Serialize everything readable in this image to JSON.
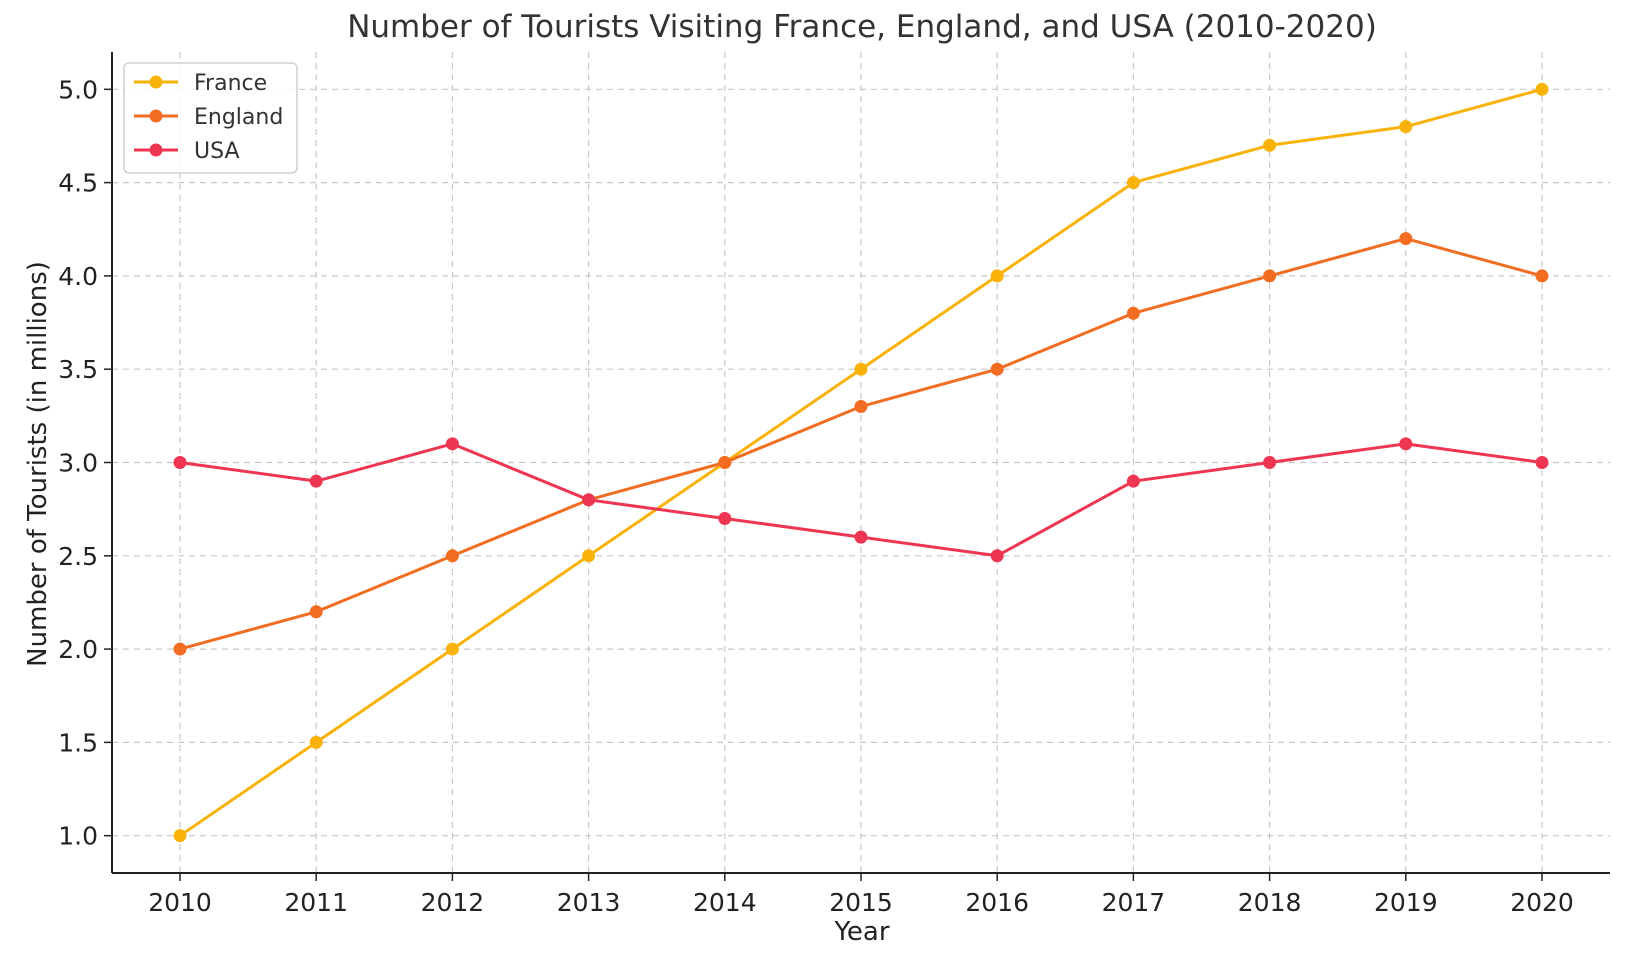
{
  "chart_data": {
    "type": "line",
    "title": "Number of Tourists Visiting France, England, and USA (2010-2020)",
    "xlabel": "Year",
    "ylabel": "Number of Tourists (in millions)",
    "categories": [
      "2010",
      "2011",
      "2012",
      "2013",
      "2014",
      "2015",
      "2016",
      "2017",
      "2018",
      "2019",
      "2020"
    ],
    "ylim": [
      0.8,
      5.2
    ],
    "yticks": [
      "1.0",
      "1.5",
      "2.0",
      "2.5",
      "3.0",
      "3.5",
      "4.0",
      "4.5",
      "5.0"
    ],
    "grid": true,
    "legend_position": "top-left",
    "markers": "circle",
    "series": [
      {
        "name": "France",
        "color": "#F9B208",
        "values": [
          1.0,
          1.5,
          2.0,
          2.5,
          3.0,
          3.5,
          4.0,
          4.5,
          4.7,
          4.8,
          5.0
        ]
      },
      {
        "name": "England",
        "color": "#F26C21",
        "values": [
          2.0,
          2.2,
          2.5,
          2.8,
          3.0,
          3.3,
          3.5,
          3.8,
          4.0,
          4.2,
          4.0
        ]
      },
      {
        "name": "USA",
        "color": "#EE3552",
        "values": [
          3.0,
          2.9,
          3.1,
          2.8,
          2.7,
          2.6,
          2.5,
          2.9,
          3.0,
          3.1,
          3.0
        ]
      }
    ]
  }
}
